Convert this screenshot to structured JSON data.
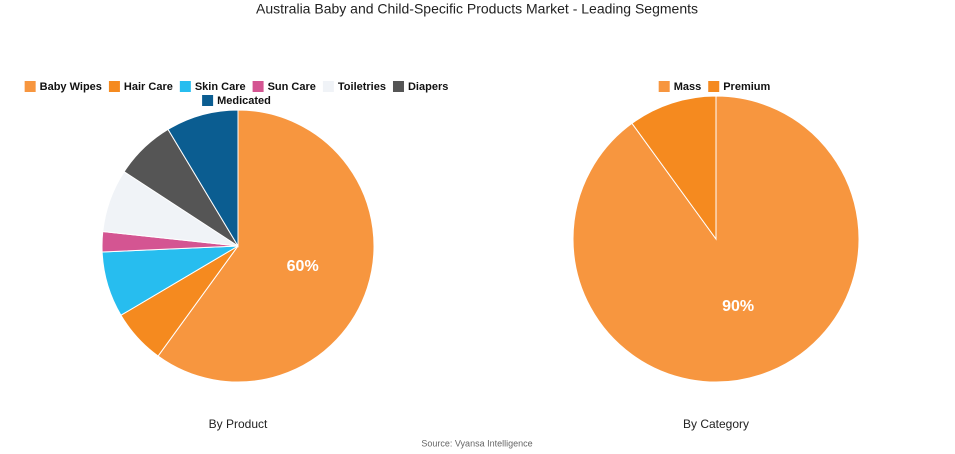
{
  "title": "Australia Baby and Child-Specific Products  Market - Leading Segments",
  "source": "Source: Vyansa Intelligence",
  "chart_data": [
    {
      "type": "pie",
      "title": "By Product",
      "categories": [
        "Baby Wipes",
        "Hair Care",
        "Skin Care",
        "Sun Care",
        "Toiletries",
        "Diapers",
        "Medicated"
      ],
      "values": [
        60,
        6.5,
        7.8,
        2.4,
        7.5,
        7.2,
        8.6
      ],
      "value_labels": [
        "60%",
        null,
        null,
        null,
        null,
        null,
        null
      ],
      "colors": [
        "#f7963f",
        "#f58a1f",
        "#27bdef",
        "#d45592",
        "#f0f3f7",
        "#555555",
        "#0b5d91"
      ]
    },
    {
      "type": "pie",
      "title": "By Category",
      "categories": [
        "Mass",
        "Premium"
      ],
      "values": [
        90,
        10
      ],
      "value_labels": [
        "90%",
        null
      ],
      "colors": [
        "#f7963f",
        "#f58a1f"
      ]
    }
  ]
}
